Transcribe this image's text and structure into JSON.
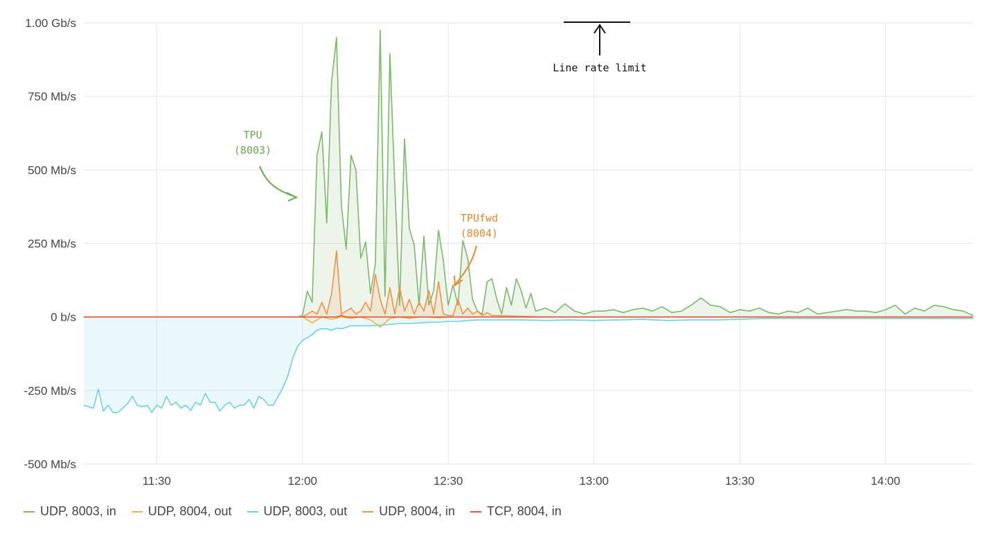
{
  "chart_data": {
    "type": "area",
    "y_ticks": [
      "1.00 Gb/s",
      "750 Mb/s",
      "500 Mb/s",
      "250 Mb/s",
      "0 b/s",
      "-250 Mb/s",
      "-500 Mb/s"
    ],
    "y_tick_values": [
      1000,
      750,
      500,
      250,
      0,
      -250,
      -500
    ],
    "ylim": [
      -500,
      1000
    ],
    "x_ticks": [
      "11:30",
      "12:00",
      "12:30",
      "13:00",
      "13:30",
      "14:00"
    ],
    "x_tick_minutes": [
      690,
      720,
      750,
      780,
      810,
      840
    ],
    "xlim_minutes": [
      675,
      858
    ],
    "grid": true,
    "legend_position": "bottom-left",
    "series": [
      {
        "name": "UDP, 8003, in",
        "color": "#7cb86a",
        "x": [
          675,
          690,
          700,
          710,
          718,
          719,
          720,
          721,
          722,
          723,
          724,
          725,
          726,
          727,
          728,
          729,
          730,
          731,
          732,
          733,
          734,
          735,
          736,
          737,
          738,
          739,
          740,
          741,
          742,
          743,
          744,
          745,
          746,
          747,
          748,
          749,
          750,
          751,
          752,
          753,
          754,
          755,
          756,
          757,
          758,
          759,
          760,
          761,
          762,
          763,
          764,
          765,
          766,
          767,
          768,
          770,
          772,
          774,
          776,
          778,
          780,
          782,
          784,
          786,
          788,
          790,
          792,
          794,
          796,
          798,
          800,
          802,
          804,
          806,
          808,
          810,
          812,
          814,
          816,
          818,
          820,
          822,
          824,
          826,
          828,
          830,
          832,
          834,
          836,
          838,
          840,
          842,
          844,
          846,
          848,
          850,
          852,
          854,
          856,
          858
        ],
        "y": [
          0,
          0,
          0,
          0,
          0,
          0,
          5,
          40,
          120,
          150,
          200,
          280,
          120,
          300,
          380,
          230,
          80,
          220,
          200,
          60,
          80,
          40,
          120,
          70,
          40,
          450,
          40,
          130,
          300,
          90,
          40,
          260,
          40,
          90,
          40,
          190,
          40,
          110,
          40,
          260,
          40,
          60,
          20,
          10,
          50,
          130,
          60,
          10,
          80,
          40,
          130,
          90,
          30,
          80,
          20,
          30,
          15,
          45,
          20,
          10,
          20,
          20,
          25,
          15,
          25,
          30,
          20,
          35,
          15,
          20,
          40,
          65,
          40,
          35,
          15,
          25,
          20,
          30,
          15,
          10,
          20,
          15,
          30,
          10,
          15,
          20,
          25,
          20,
          20,
          15,
          25,
          40,
          10,
          30,
          20,
          40,
          35,
          25,
          20,
          5
        ],
        "peaks": [
          [
            721,
            88
          ],
          [
            722,
            50
          ],
          [
            723,
            550
          ],
          [
            724,
            630
          ],
          [
            725,
            320
          ],
          [
            726,
            800
          ],
          [
            727,
            950
          ],
          [
            730,
            550
          ],
          [
            731,
            500
          ],
          [
            733,
            255
          ],
          [
            735,
            180
          ],
          [
            736,
            975
          ],
          [
            738,
            895
          ],
          [
            741,
            605
          ],
          [
            743,
            245
          ],
          [
            745,
            275
          ],
          [
            748,
            295
          ],
          [
            754,
            200
          ],
          [
            758,
            120
          ],
          [
            762,
            100
          ]
        ]
      },
      {
        "name": "UDP, 8004, out",
        "color": "#e8b84a",
        "x": [
          675,
          720,
          722,
          724,
          726,
          728,
          730,
          732,
          734,
          736,
          738,
          740,
          742,
          744,
          746,
          748,
          750,
          760,
          858
        ],
        "y": [
          0,
          0,
          -20,
          0,
          -8,
          0,
          -5,
          0,
          -10,
          -35,
          -5,
          0,
          -5,
          0,
          0,
          -3,
          0,
          0,
          0
        ]
      },
      {
        "name": "UDP, 8003, out",
        "color": "#6fd0e0",
        "x": [
          675,
          676,
          677,
          678,
          679,
          680,
          681,
          682,
          683,
          684,
          685,
          686,
          687,
          688,
          689,
          690,
          691,
          692,
          693,
          694,
          695,
          696,
          697,
          698,
          699,
          700,
          701,
          702,
          703,
          704,
          705,
          706,
          707,
          708,
          709,
          710,
          711,
          712,
          713,
          714,
          715,
          716,
          717,
          718,
          719,
          720,
          721,
          722,
          723,
          724,
          725,
          726,
          727,
          728,
          729,
          730,
          732,
          734,
          736,
          738,
          740,
          742,
          744,
          746,
          748,
          750,
          752,
          754,
          756,
          758,
          760,
          765,
          770,
          775,
          780,
          785,
          790,
          795,
          800,
          805,
          810,
          815,
          820,
          822,
          824,
          826,
          828,
          830,
          832,
          834,
          836,
          838,
          840,
          842,
          844,
          846,
          848,
          850,
          852,
          854,
          856,
          858
        ],
        "y": [
          -300,
          -305,
          -310,
          -245,
          -320,
          -300,
          -325,
          -325,
          -310,
          -295,
          -270,
          -300,
          -305,
          -300,
          -325,
          -300,
          -310,
          -270,
          -300,
          -290,
          -310,
          -300,
          -318,
          -290,
          -300,
          -260,
          -290,
          -290,
          -320,
          -300,
          -290,
          -310,
          -300,
          -300,
          -280,
          -310,
          -270,
          -280,
          -300,
          -300,
          -270,
          -240,
          -200,
          -140,
          -100,
          -80,
          -70,
          -60,
          -45,
          -40,
          -40,
          -45,
          -38,
          -40,
          -35,
          -30,
          -30,
          -30,
          -28,
          -25,
          -22,
          -22,
          -20,
          -18,
          -18,
          -15,
          -15,
          -12,
          -10,
          -10,
          -10,
          -10,
          -12,
          -10,
          -12,
          -10,
          -8,
          -12,
          -10,
          -10,
          -8,
          -5,
          -5,
          -5,
          -5,
          -5,
          -5,
          -5,
          -5,
          -5,
          -5,
          -5,
          -5,
          -5,
          -5,
          -5,
          -5,
          -5,
          -5,
          -5,
          -5,
          -5
        ]
      },
      {
        "name": "UDP, 8004, in",
        "color": "#f0924a",
        "x": [
          675,
          720,
          722,
          723,
          724,
          725,
          726,
          727,
          728,
          729,
          730,
          731,
          732,
          733,
          734,
          735,
          736,
          737,
          738,
          739,
          740,
          741,
          742,
          743,
          744,
          745,
          746,
          747,
          748,
          749,
          750,
          751,
          752,
          753,
          754,
          755,
          756,
          757,
          758,
          759,
          760,
          770,
          858
        ],
        "y": [
          0,
          0,
          20,
          10,
          50,
          10,
          80,
          225,
          10,
          20,
          30,
          10,
          20,
          50,
          20,
          145,
          60,
          10,
          100,
          10,
          100,
          20,
          60,
          10,
          50,
          20,
          90,
          10,
          120,
          10,
          5,
          5,
          60,
          10,
          30,
          10,
          20,
          5,
          15,
          5,
          5,
          0,
          0
        ]
      },
      {
        "name": "TCP, 8004, in",
        "color": "#e0543a",
        "x": [
          675,
          727,
          728,
          729,
          858
        ],
        "y": [
          0,
          0,
          5,
          0,
          0
        ]
      }
    ],
    "annotations": [
      {
        "text": "TPU",
        "color": "#6aa84f"
      },
      {
        "text": "(8003)",
        "color": "#6aa84f"
      },
      {
        "text": "TPUfwd",
        "color": "#e8882e"
      },
      {
        "text": "(8004)",
        "color": "#e8882e"
      },
      {
        "text": "Line rate limit",
        "color": "#111111"
      }
    ]
  }
}
